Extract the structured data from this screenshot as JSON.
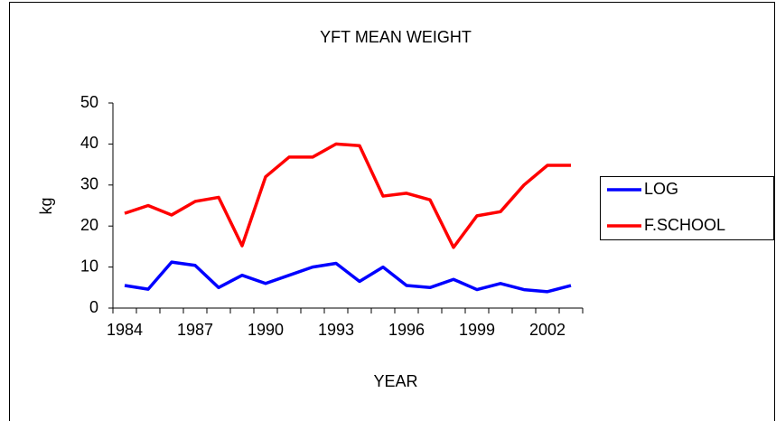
{
  "chart_data": {
    "type": "line",
    "title": "YFT MEAN WEIGHT",
    "x_label": "YEAR",
    "y_label": "kg",
    "categories": [
      "1984",
      null,
      null,
      "1987",
      null,
      null,
      "1990",
      null,
      null,
      "1993",
      null,
      null,
      "1996",
      null,
      null,
      "1999",
      null,
      null,
      "2002",
      null
    ],
    "series": [
      {
        "name": "LOG",
        "color": "#0000ff",
        "values": [
          5.5,
          4.6,
          11.2,
          10.4,
          5,
          8,
          6,
          8,
          10,
          10.9,
          6.5,
          10,
          5.5,
          5,
          7,
          4.5,
          6,
          4.5,
          4,
          5.5
        ]
      },
      {
        "name": "F.SCHOOL",
        "color": "#ff0000",
        "values": [
          23.1,
          25,
          22.7,
          26,
          27,
          15.2,
          32,
          36.8,
          36.8,
          40,
          39.6,
          27.3,
          28,
          26.4,
          14.8,
          22.5,
          23.5,
          30,
          34.8,
          34.8
        ]
      }
    ],
    "ylim": [
      0,
      50
    ],
    "yticks": [
      0,
      10,
      20,
      30,
      40,
      50
    ],
    "grid": false,
    "legend": "right"
  }
}
